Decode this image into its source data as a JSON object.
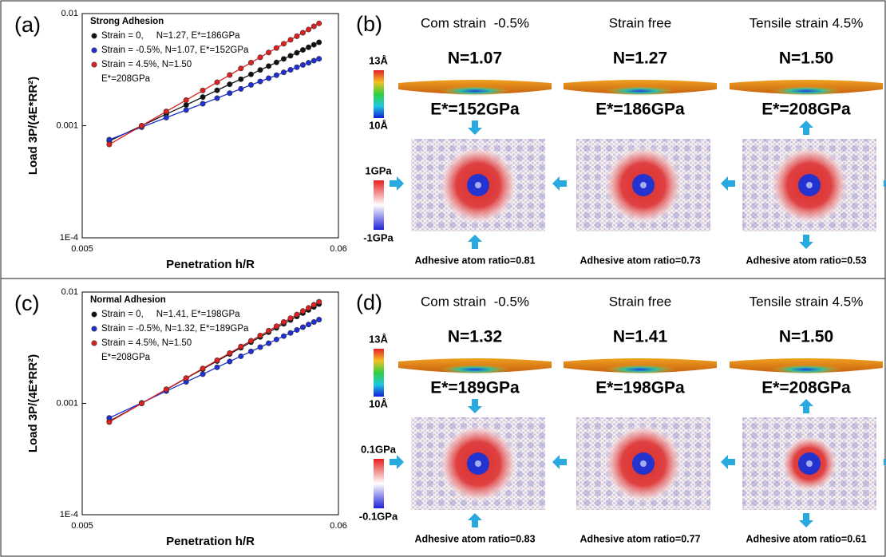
{
  "chart_data": [
    {
      "type": "line",
      "panel_label": "(a)",
      "legend_title": "Strong Adhesion",
      "legend": "upper left",
      "xlabel": "Penetration h/R",
      "ylabel": "Load 3P/(4E*RR²)",
      "log_x": true,
      "log_y": true,
      "xlim": [
        0.005,
        0.06
      ],
      "ylim": [
        0.0001,
        0.01
      ],
      "xticks": [
        0.005,
        0.06
      ],
      "yticks": [
        {
          "value": 0.0001,
          "label": "1E-4"
        },
        0.001,
        0.01
      ],
      "x": [
        0.0065,
        0.0089,
        0.0113,
        0.0137,
        0.0161,
        0.0185,
        0.0209,
        0.0233,
        0.0257,
        0.0281,
        0.0305,
        0.0329,
        0.0353,
        0.0377,
        0.0401,
        0.0425,
        0.0449,
        0.0473,
        0.0497
      ],
      "series": [
        {
          "name": "Strain = 0,     N=1.27, E*=186GPa",
          "color": "#111111",
          "values": [
            0.00073,
            0.000998,
            0.00127,
            0.00153,
            0.0018,
            0.00207,
            0.00234,
            0.0026,
            0.00287,
            0.00314,
            0.0034,
            0.00367,
            0.00394,
            0.0042,
            0.00447,
            0.00474,
            0.005,
            0.00527,
            0.00554
          ]
        },
        {
          "name": "Strain = -0.5%, N=1.07, E*=152GPa",
          "color": "#1f2fd6",
          "values": [
            0.00075,
            0.00097,
            0.00118,
            0.00138,
            0.00157,
            0.00176,
            0.00195,
            0.00213,
            0.00231,
            0.00248,
            0.00265,
            0.00282,
            0.00299,
            0.00315,
            0.00332,
            0.00348,
            0.00364,
            0.0038,
            0.00395
          ]
        },
        {
          "name": "Strain = 4.5%, N=1.50\nE*=208GPa",
          "color": "#e02020",
          "values": [
            0.00068,
            0.000998,
            0.00134,
            0.00169,
            0.00206,
            0.00244,
            0.00283,
            0.00324,
            0.00365,
            0.00407,
            0.0045,
            0.00493,
            0.00538,
            0.00583,
            0.00628,
            0.00675,
            0.00721,
            0.00769,
            0.00817
          ]
        }
      ]
    },
    {
      "type": "line",
      "panel_label": "(c)",
      "legend_title": "Normal Adhesion",
      "legend": "upper left",
      "xlabel": "Penetration h/R",
      "ylabel": "Load 3P/(4E*RR²)",
      "log_x": true,
      "log_y": true,
      "xlim": [
        0.005,
        0.06
      ],
      "ylim": [
        0.0001,
        0.01
      ],
      "xticks": [
        0.005,
        0.06
      ],
      "yticks": [
        {
          "value": 0.0001,
          "label": "1E-4"
        },
        0.001,
        0.01
      ],
      "x": [
        0.0065,
        0.0089,
        0.0113,
        0.0137,
        0.0161,
        0.0185,
        0.0209,
        0.0233,
        0.0257,
        0.0281,
        0.0305,
        0.0329,
        0.0353,
        0.0377,
        0.0401,
        0.0425,
        0.0449,
        0.0473,
        0.0497
      ],
      "series": [
        {
          "name": "Strain = 0,     N=1.41, E*=198GPa",
          "color": "#111111",
          "values": [
            0.00069,
            0.001,
            0.00133,
            0.00168,
            0.00203,
            0.0024,
            0.00278,
            0.00316,
            0.00355,
            0.00395,
            0.00436,
            0.00477,
            0.00519,
            0.00561,
            0.00604,
            0.00647,
            0.00691,
            0.00735,
            0.0078
          ]
        },
        {
          "name": "Strain = -0.5%, N=1.32, E*=189GPa",
          "color": "#1f2fd6",
          "values": [
            0.00074,
            0.00101,
            0.00129,
            0.00156,
            0.00183,
            0.00211,
            0.00238,
            0.00265,
            0.00293,
            0.0032,
            0.00347,
            0.00375,
            0.00402,
            0.00429,
            0.00457,
            0.00484,
            0.00511,
            0.00538,
            0.00566
          ]
        },
        {
          "name": "Strain = 4.5%, N=1.50\nE*=208GPa",
          "color": "#e02020",
          "values": [
            0.00068,
            0.000998,
            0.00134,
            0.00169,
            0.00206,
            0.00244,
            0.00283,
            0.00324,
            0.00365,
            0.00407,
            0.0045,
            0.00493,
            0.00538,
            0.00583,
            0.00628,
            0.00675,
            0.00721,
            0.00769,
            0.00817
          ]
        }
      ]
    }
  ],
  "figure_panels": [
    {
      "label": "(b)",
      "height_scale": [
        "13Å",
        "10Å"
      ],
      "stress_scale": [
        "1GPa",
        "-1GPa"
      ],
      "columns": [
        {
          "title": "Com strain  -0.5%",
          "n": "N=1.07",
          "modulus": "E*=152GPa",
          "ratio": "Adhesive atom ratio=0.81"
        },
        {
          "title": "Strain free",
          "n": "N=1.27",
          "modulus": "E*=186GPa",
          "ratio": "Adhesive atom ratio=0.73"
        },
        {
          "title": "Tensile strain 4.5%",
          "n": "N=1.50",
          "modulus": "E*=208GPa",
          "ratio": "Adhesive atom ratio=0.53"
        }
      ]
    },
    {
      "label": "(d)",
      "height_scale": [
        "13Å",
        "10Å"
      ],
      "stress_scale": [
        "0.1GPa",
        "-0.1GPa"
      ],
      "columns": [
        {
          "title": "Com strain  -0.5%",
          "n": "N=1.32",
          "modulus": "E*=189GPa",
          "ratio": "Adhesive atom ratio=0.83"
        },
        {
          "title": "Strain free",
          "n": "N=1.41",
          "modulus": "E*=198GPa",
          "ratio": "Adhesive atom ratio=0.77"
        },
        {
          "title": "Tensile strain 4.5%",
          "n": "N=1.50",
          "modulus": "E*=208GPa",
          "ratio": "Adhesive atom ratio=0.61"
        }
      ]
    }
  ]
}
